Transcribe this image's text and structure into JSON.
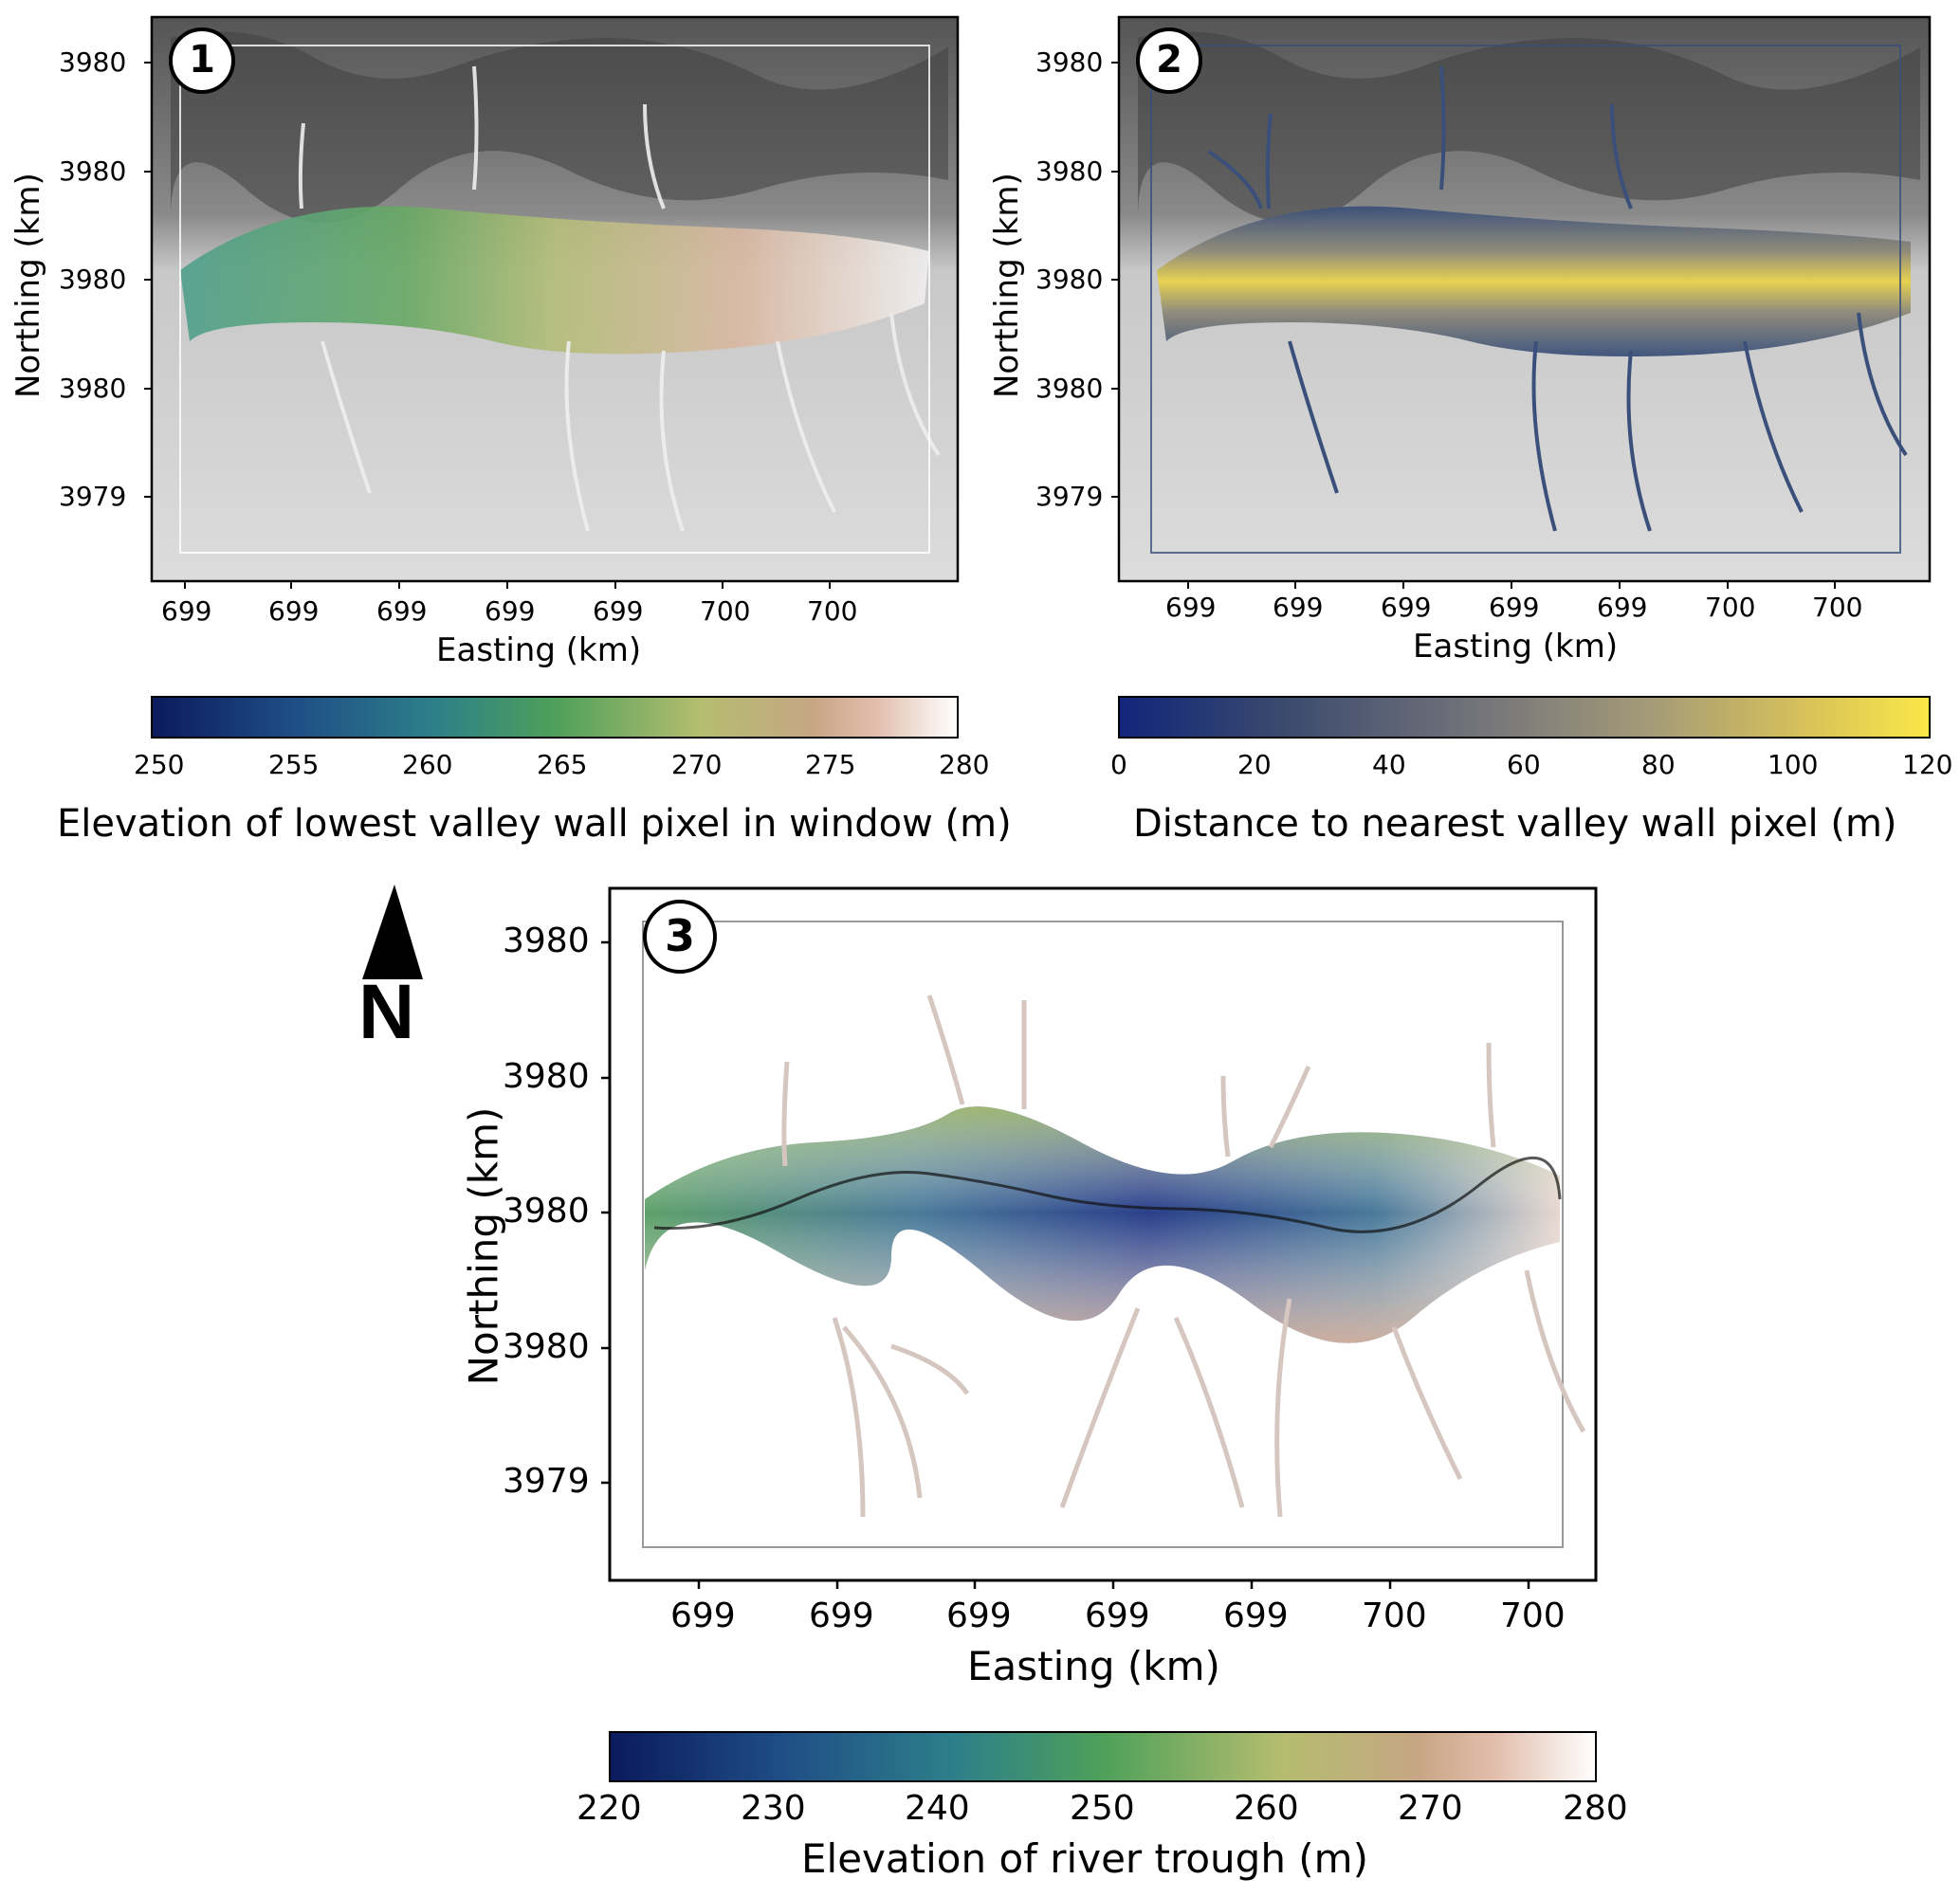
{
  "panels": [
    {
      "id": "1",
      "badge": "1",
      "xlabel": "Easting (km)",
      "ylabel": "Northing (km)",
      "xticks": [
        "699",
        "699",
        "699",
        "699",
        "699",
        "700",
        "700"
      ],
      "yticks": [
        "3980",
        "3980",
        "3980",
        "3980",
        "3979"
      ],
      "overlay": "elevation-of-lowest-valley-wall",
      "colorbar": {
        "label": "Elevation of lowest valley wall pixel in window (m)",
        "ticks": [
          "250",
          "255",
          "260",
          "265",
          "270",
          "275",
          "280"
        ],
        "range": [
          250,
          280
        ]
      }
    },
    {
      "id": "2",
      "badge": "2",
      "xlabel": "Easting (km)",
      "ylabel": "Northing (km)",
      "xticks": [
        "699",
        "699",
        "699",
        "699",
        "699",
        "700",
        "700"
      ],
      "yticks": [
        "3980",
        "3980",
        "3980",
        "3980",
        "3979"
      ],
      "overlay": "distance-to-valley-wall",
      "colorbar": {
        "label": "Distance to nearest valley wall pixel (m)",
        "ticks": [
          "0",
          "20",
          "40",
          "60",
          "80",
          "100",
          "120"
        ],
        "range": [
          0,
          120
        ]
      }
    },
    {
      "id": "3",
      "badge": "3",
      "xlabel": "Easting (km)",
      "ylabel": "Northing (km)",
      "xticks": [
        "699",
        "699",
        "699",
        "699",
        "699",
        "700",
        "700"
      ],
      "yticks": [
        "3980",
        "3980",
        "3980",
        "3980",
        "3979"
      ],
      "overlay": "river-trough-elevation",
      "colorbar": {
        "label": "Elevation of river trough (m)",
        "ticks": [
          "220",
          "230",
          "240",
          "250",
          "260",
          "270",
          "280"
        ],
        "range": [
          220,
          280
        ]
      }
    }
  ],
  "north_arrow": {
    "label": "N"
  },
  "colors": {
    "gist_earth_like": [
      "#0b1a5c",
      "#1f4f86",
      "#2d7f8a",
      "#4ea05a",
      "#a9bf6f",
      "#c9b27a",
      "#dbb5a0",
      "#ffffff"
    ],
    "cividis_like": [
      "#10257a",
      "#3a4a6e",
      "#6b6b70",
      "#8f8a78",
      "#bba86a",
      "#e2d050",
      "#fbe847"
    ]
  }
}
